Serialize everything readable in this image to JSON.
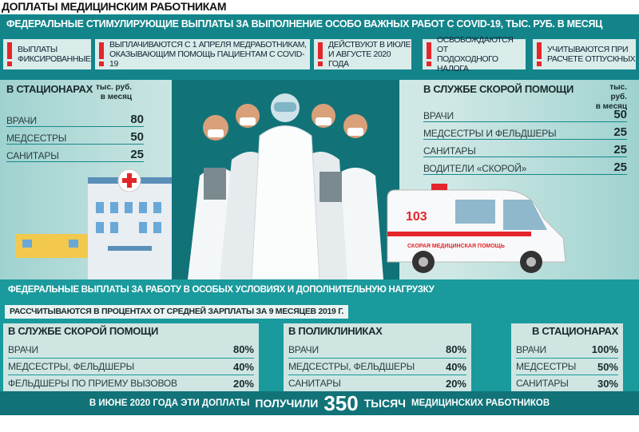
{
  "title": "ДОПЛАТЫ МЕДИЦИНСКИМ РАБОТНИКАМ",
  "section1": {
    "heading": "ФЕДЕРАЛЬНЫЕ СТИМУЛИРУЮЩИЕ ВЫПЛАТЫ ЗА ВЫПОЛНЕНИЕ ОСОБО ВАЖНЫХ РАБОТ С COVID-19, ТЫС. РУБ. В МЕСЯЦ",
    "notes": [
      "ВЫПЛАТЫ\nФИКСИРОВАННЫЕ",
      "ВЫПЛАЧИВАЮТСЯ С 1 АПРЕЛЯ МЕДРАБОТНИКАМ,\nОКАЗЫВАЮЩИМ ПОМОЩЬ ПАЦИЕНТАМ С COVID-19",
      "ДЕЙСТВУЮТ В ИЮЛЕ\nИ АВГУСТЕ 2020 ГОДА",
      "ОСВОБОЖДАЮТСЯ ОТ\nПОДОХОДНОГО НАЛОГА",
      "УЧИТЫВАЮТСЯ ПРИ\nРАСЧЕТЕ ОТПУСКНЫХ"
    ],
    "hospitals": {
      "title": "В СТАЦИОНАРАХ",
      "unit": "тыс. руб.\nв месяц",
      "rows": [
        {
          "label": "ВРАЧИ",
          "value": "80"
        },
        {
          "label": "МЕДСЕСТРЫ",
          "value": "50"
        },
        {
          "label": "САНИТАРЫ",
          "value": "25"
        }
      ]
    },
    "ambulance": {
      "title": "В СЛУЖБЕ СКОРОЙ ПОМОЩИ",
      "unit": "тыс. руб.\nв месяц",
      "rows": [
        {
          "label": "ВРАЧИ",
          "value": "50"
        },
        {
          "label": "МЕДСЕСТРЫ И ФЕЛЬДШЕРЫ",
          "value": "25"
        },
        {
          "label": "САНИТАРЫ",
          "value": "25"
        },
        {
          "label": "ВОДИТЕЛИ «СКОРОЙ»",
          "value": "25"
        }
      ]
    },
    "ambulance_number": "103",
    "ambulance_text": "СКОРАЯ МЕДИЦИНСКАЯ ПОМОЩЬ"
  },
  "section2": {
    "heading": "ФЕДЕРАЛЬНЫЕ ВЫПЛАТЫ ЗА РАБОТУ В ОСОБЫХ УСЛОВИЯХ И ДОПОЛНИТЕЛЬНУЮ НАГРУЗКУ",
    "subheading": "РАССЧИТЫВАЮТСЯ В ПРОЦЕНТАХ ОТ СРЕДНЕЙ ЗАРПЛАТЫ ЗА 9 МЕСЯЦЕВ 2019 Г.",
    "panels": [
      {
        "title": "В СЛУЖБЕ СКОРОЙ ПОМОЩИ",
        "rows": [
          {
            "label": "ВРАЧИ",
            "value": "80%"
          },
          {
            "label": "МЕДСЕСТРЫ, ФЕЛЬДШЕРЫ",
            "value": "40%"
          },
          {
            "label": "ФЕЛЬДШЕРЫ ПО ПРИЕМУ ВЫЗОВОВ",
            "value": "20%"
          }
        ]
      },
      {
        "title": "В ПОЛИКЛИНИКАХ",
        "rows": [
          {
            "label": "ВРАЧИ",
            "value": "80%"
          },
          {
            "label": "МЕДСЕСТРЫ, ФЕЛЬДШЕРЫ",
            "value": "40%"
          },
          {
            "label": "САНИТАРЫ",
            "value": "20%"
          }
        ]
      },
      {
        "title": "В СТАЦИОНАРАХ",
        "rows": [
          {
            "label": "ВРАЧИ",
            "value": "100%"
          },
          {
            "label": "МЕДСЕСТРЫ",
            "value": "50%"
          },
          {
            "label": "САНИТАРЫ",
            "value": "30%"
          }
        ]
      }
    ]
  },
  "footer": {
    "part1": "В ИЮНЕ 2020 ГОДА ЭТИ ДОПЛАТЫ",
    "part2": "ПОЛУЧИЛИ",
    "number": "350",
    "part3": "ТЫСЯЧ",
    "part4": "МЕДИЦИНСКИХ РАБОТНИКОВ"
  },
  "colors": {
    "teal": "#13858a",
    "dark_teal": "#117378",
    "panel": "#cfe5e2",
    "alert_red": "#e3262b"
  }
}
